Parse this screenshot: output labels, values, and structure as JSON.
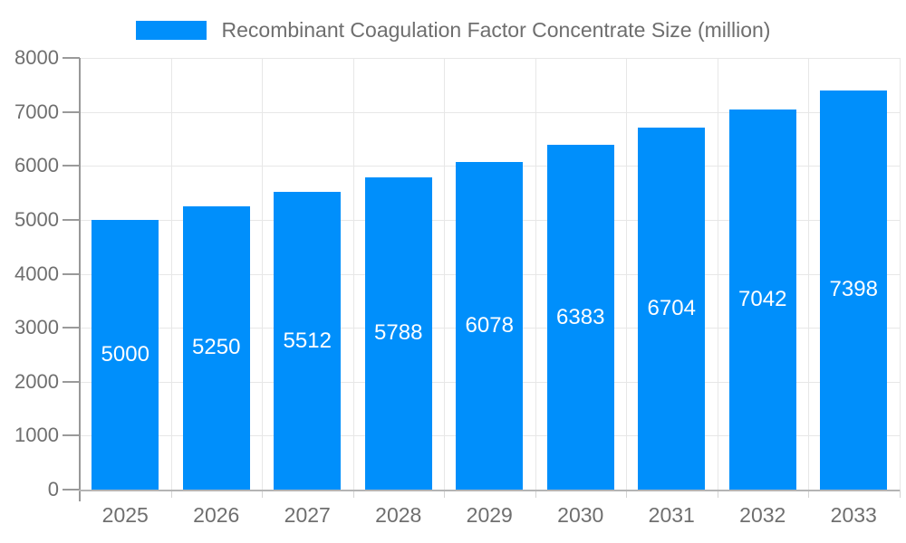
{
  "colors": {
    "bar": "#008FFB",
    "grid": "#e7e7e7",
    "x_axis_line": "#b4b4b4",
    "y_axis_line": "#989898",
    "y_tick": "#9a9a9a",
    "x_tick": "#d4d4d4",
    "axis_label_text": "#6f6f6f",
    "legend_text": "#6e6e6e",
    "bar_value_text": "#ffffff",
    "background": "#ffffff"
  },
  "chart_data": {
    "type": "bar",
    "title": "",
    "legend_position": "top",
    "grid": true,
    "data_labels": true,
    "categories": [
      "2025",
      "2026",
      "2027",
      "2028",
      "2029",
      "2030",
      "2031",
      "2032",
      "2033"
    ],
    "series": [
      {
        "name": "Recombinant Coagulation Factor Concentrate Size (million)",
        "values": [
          5000,
          5250,
          5512,
          5788,
          6078,
          6383,
          6704,
          7042,
          7398
        ]
      }
    ],
    "xlabel": "",
    "ylabel": "",
    "ylim": [
      0,
      8000
    ],
    "yticks": [
      0,
      1000,
      2000,
      3000,
      4000,
      5000,
      6000,
      7000,
      8000
    ]
  }
}
